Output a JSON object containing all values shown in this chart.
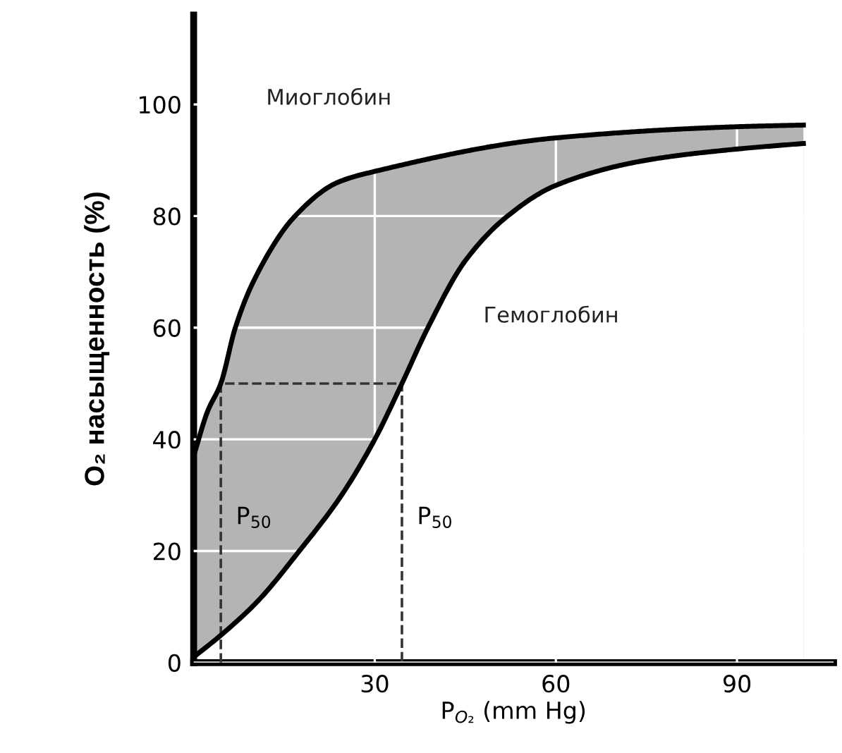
{
  "chart_data": {
    "type": "line",
    "xlabel": "P$_{O₂}$ (mm Hg)",
    "ylabel": "O₂ насыщенность (%)",
    "series": [
      {
        "name": "Миоглобин",
        "type": "area",
        "color": "#b4b4b4",
        "x": [
          0,
          2.3,
          4.5,
          6.9,
          10,
          16.8,
          23.8,
          30,
          60,
          90,
          101
        ],
        "values": [
          37,
          45,
          50,
          60,
          68.5,
          80,
          86,
          88,
          94,
          96,
          96.3
        ]
      },
      {
        "name": "Гемоглобин",
        "type": "area",
        "color": "#ffffff",
        "x": [
          0,
          4.6,
          10.6,
          17.5,
          24.5,
          30,
          34.5,
          38.8,
          45,
          52,
          60,
          75,
          90,
          101
        ],
        "values": [
          1,
          5,
          11,
          20,
          30,
          40,
          50,
          60,
          72,
          80,
          85.5,
          90,
          92,
          93
        ]
      },
      {
        "color": "#333333",
        "line_style": "dashed",
        "x": [
          4.5,
          4.5,
          34.5,
          34.5
        ],
        "values": [
          0,
          50,
          50,
          0
        ]
      }
    ],
    "annotations": [
      "P$_{50}$",
      "P$_{50}$"
    ],
    "xlim": [
      0,
      106
    ],
    "ylim": [
      0,
      116
    ],
    "xticks": [
      30,
      60,
      90
    ],
    "yticks": [
      0,
      20,
      40,
      60,
      80,
      100
    ],
    "grid": true,
    "marker": "none",
    "line_style": "solid",
    "legend": false
  }
}
